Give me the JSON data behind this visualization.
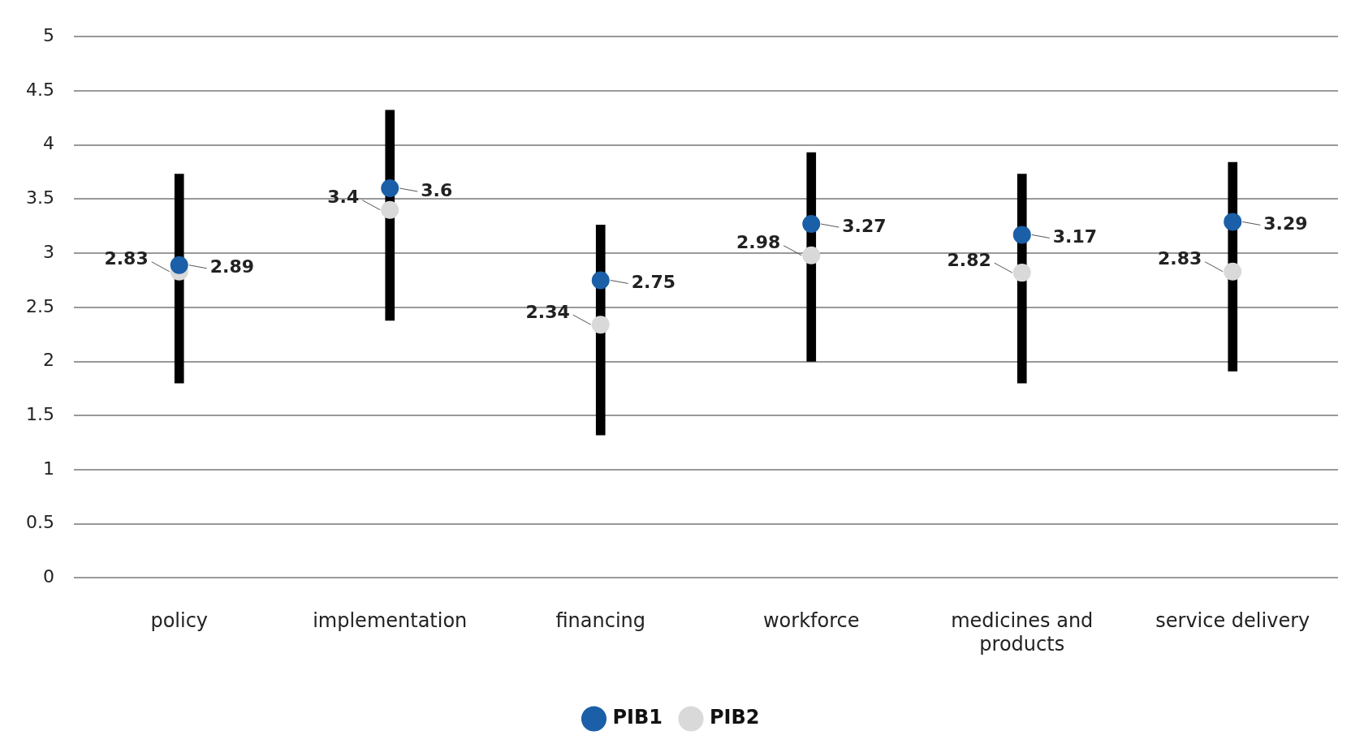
{
  "chart_data": {
    "type": "scatter",
    "categories": [
      "policy",
      "implementation",
      "financing",
      "workforce",
      "medicines and products",
      "service delivery"
    ],
    "series": [
      {
        "type": "bar",
        "color": "#000000",
        "base": [
          1.8,
          2.38,
          1.32,
          2.0,
          1.8,
          1.91
        ],
        "values": [
          1.93,
          1.94,
          1.94,
          1.93,
          1.93,
          1.93
        ]
      },
      {
        "name": "PIB1",
        "color": "#1a5fa8",
        "values": [
          2.89,
          3.6,
          2.75,
          3.27,
          3.17,
          3.29
        ],
        "value_labels": [
          "2.89",
          "3.6",
          "2.75",
          "3.27",
          "3.17",
          "3.29"
        ]
      },
      {
        "name": "PIB2",
        "color": "#d9d9d9",
        "values": [
          2.83,
          3.4,
          2.34,
          2.98,
          2.82,
          2.83
        ],
        "value_labels": [
          "2.83",
          "3.4",
          "2.34",
          "2.98",
          "2.82",
          "2.83"
        ]
      }
    ],
    "ylim": [
      0,
      5
    ],
    "yticks": [
      0,
      0.5,
      1,
      1.5,
      2,
      2.5,
      3,
      3.5,
      4,
      4.5,
      5
    ],
    "grid": "y",
    "legend": "bottom",
    "marker": "circle"
  }
}
